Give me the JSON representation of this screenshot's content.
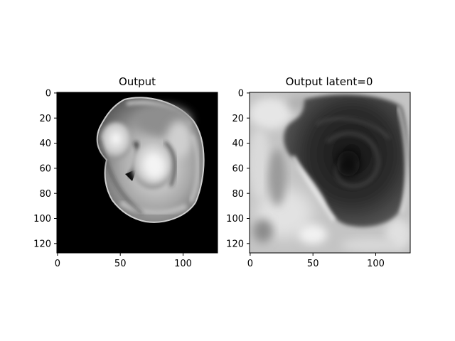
{
  "figure": {
    "background": "#ffffff",
    "panels": [
      {
        "title": "Output",
        "image": "grayscale-mri-slice-on-black",
        "xticks": [
          "0",
          "50",
          "100"
        ],
        "yticks": [
          "0",
          "20",
          "40",
          "60",
          "80",
          "100",
          "120"
        ]
      },
      {
        "title": "Output latent=0",
        "image": "grayscale-latent-reconstruction",
        "xticks": [
          "0",
          "50",
          "100"
        ],
        "yticks": [
          "0",
          "20",
          "40",
          "60",
          "80",
          "100",
          "120"
        ]
      }
    ]
  }
}
